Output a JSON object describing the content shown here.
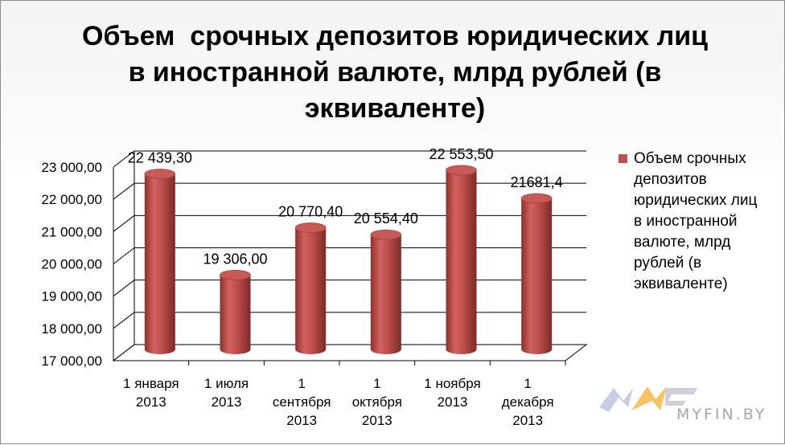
{
  "chart_data": {
    "type": "bar",
    "title_lines": [
      "Объем  срочных депозитов юридических лиц",
      "в иностранной валюте, млрд рублей (в",
      "эквиваленте)"
    ],
    "categories": [
      [
        "1 января",
        "2013"
      ],
      [
        "1 июля",
        "2013"
      ],
      [
        "1",
        "сентября",
        "2013"
      ],
      [
        "1",
        "октября",
        "2013"
      ],
      [
        "1 ноября",
        "2013"
      ],
      [
        "1",
        "декабря",
        "2013"
      ]
    ],
    "series": [
      {
        "name": "Объем  срочных\nдепозитов\nюридических лиц\nв иностранной\nвалюте, млрд\nрублей (в\nэквиваленте)",
        "values": [
          22439.3,
          19306.0,
          20770.4,
          20554.4,
          22553.5,
          21681.4
        ],
        "data_labels": [
          "22 439,30",
          "19 306,00",
          "20 770,40",
          "20 554,40",
          "22 553,50",
          "21681,4"
        ],
        "color": "#c0504d"
      }
    ],
    "ylim": [
      17000,
      23000
    ],
    "yticks": [
      17000,
      18000,
      19000,
      20000,
      21000,
      22000,
      23000
    ],
    "ytick_labels": [
      "17 000,00",
      "18 000,00",
      "19 000,00",
      "20 000,00",
      "21 000,00",
      "22 000,00",
      "23 000,00"
    ],
    "grid": true,
    "legend_position": "right",
    "style": "3d-cylinder"
  },
  "watermark": {
    "text": "MYFIN.BY",
    "colors": [
      "#9aa6c6",
      "#f5a623",
      "#d8d8e0"
    ]
  }
}
